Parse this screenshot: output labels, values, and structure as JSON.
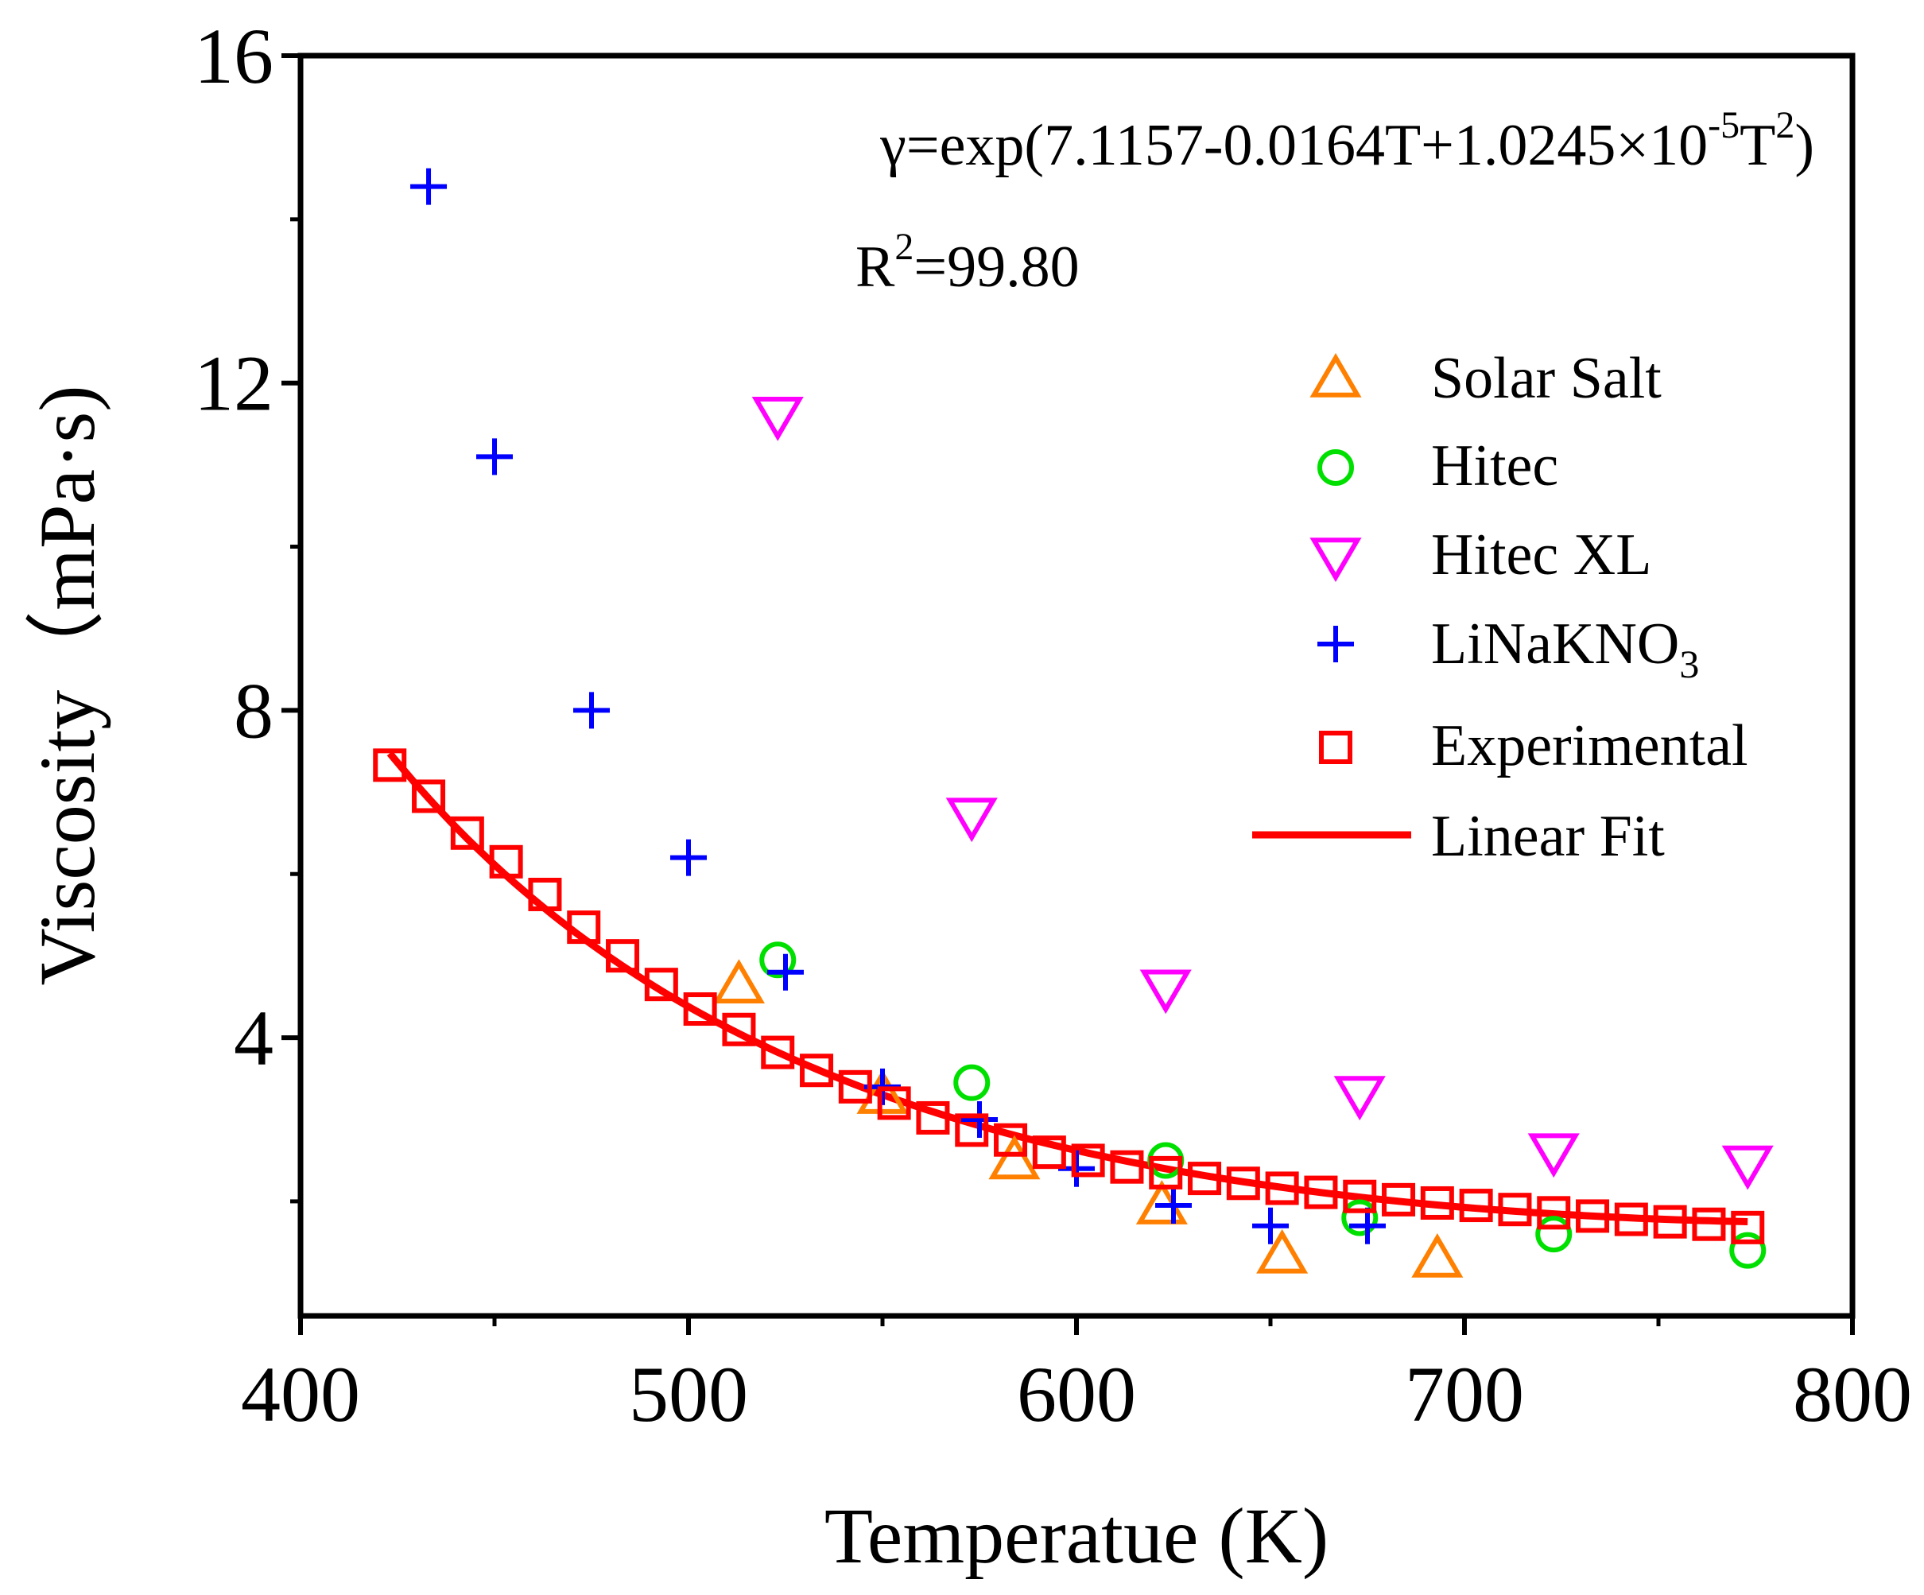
{
  "chart_data": {
    "type": "scatter",
    "title": "",
    "xlabel": "Temperatue (K)",
    "ylabel": "Viscosity（mPa·s)",
    "xlim": [
      400,
      800
    ],
    "ylim": [
      0.6,
      16
    ],
    "x_ticks": [
      400,
      500,
      600,
      700,
      800
    ],
    "y_ticks": [
      4,
      8,
      12,
      16
    ],
    "x_tick_labels": [
      "400",
      "500",
      "600",
      "700",
      "800"
    ],
    "y_tick_labels": [
      "4",
      "8",
      "12",
      "16"
    ],
    "annotations": {
      "equation": {
        "prefix": "γ=exp(7.1157-0.0164T+1.0245×10",
        "exp": "-5",
        "mid": "T",
        "exp2": "2",
        "suffix": ")"
      },
      "r2": {
        "prefix": "R",
        "exp": "2",
        "suffix": "=99.80"
      }
    },
    "series": [
      {
        "name": "Solar Salt",
        "label": "Solar Salt",
        "marker": "triangle-up",
        "color": "#FF8000",
        "x": [
          513,
          550,
          584,
          622,
          653,
          693
        ],
        "y": [
          4.65,
          3.3,
          2.5,
          1.95,
          1.35,
          1.3
        ]
      },
      {
        "name": "Hitec",
        "label": "Hitec",
        "marker": "circle",
        "color": "#00E000",
        "x": [
          523,
          573,
          623,
          673,
          723,
          773
        ],
        "y": [
          4.95,
          3.45,
          2.5,
          1.8,
          1.6,
          1.4
        ]
      },
      {
        "name": "Hitec XL",
        "label": "Hitec XL",
        "marker": "triangle-down",
        "color": "#FF00FF",
        "x": [
          523,
          573,
          623,
          673,
          723,
          773
        ],
        "y": [
          11.6,
          6.7,
          4.6,
          3.3,
          2.6,
          2.45
        ]
      },
      {
        "name": "LiNaKNO3",
        "label_base": "LiNaKNO",
        "label_sub": "3",
        "marker": "plus",
        "color": "#0000FF",
        "x": [
          433,
          450,
          475,
          500,
          525,
          550,
          575,
          600,
          625,
          650,
          675
        ],
        "y": [
          14.4,
          11.1,
          8.0,
          6.2,
          4.8,
          3.4,
          3.0,
          2.4,
          1.95,
          1.7,
          1.7
        ]
      },
      {
        "name": "Experimental",
        "label": "Experimental",
        "marker": "square",
        "color": "#FF0000",
        "x": [
          423,
          433,
          443,
          453,
          463,
          473,
          483,
          493,
          503,
          513,
          523,
          533,
          543,
          553,
          563,
          573,
          583,
          593,
          603,
          613,
          623,
          633,
          643,
          653,
          663,
          673,
          683,
          693,
          703,
          713,
          723,
          733,
          743,
          753,
          763,
          773
        ],
        "y": [
          7.33,
          6.95,
          6.5,
          6.15,
          5.75,
          5.35,
          5.0,
          4.65,
          4.35,
          4.1,
          3.82,
          3.6,
          3.4,
          3.2,
          3.02,
          2.87,
          2.75,
          2.6,
          2.5,
          2.42,
          2.35,
          2.28,
          2.22,
          2.16,
          2.11,
          2.06,
          2.02,
          1.98,
          1.95,
          1.9,
          1.86,
          1.82,
          1.78,
          1.75,
          1.72,
          1.68
        ]
      }
    ],
    "fit": {
      "name": "Linear Fit",
      "label": "Linear Fit",
      "color": "#FF0000",
      "equation": "exp(7.1157 - 0.0164*T + 1.0245e-5*T^2)",
      "x_range": [
        423,
        773
      ],
      "coef": [
        7.1157,
        -0.0164,
        1.0245e-05
      ]
    },
    "legend_position": "right"
  }
}
